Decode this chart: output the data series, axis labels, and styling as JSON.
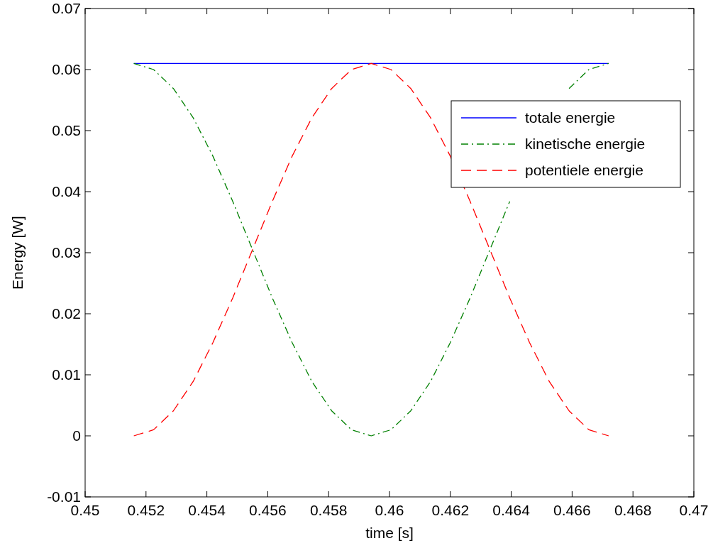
{
  "chart_data": {
    "type": "line",
    "xlabel": "time [s]",
    "ylabel": "Energy [W]",
    "xlim": [
      0.45,
      0.47
    ],
    "xticks": [
      0.45,
      0.452,
      0.454,
      0.456,
      0.458,
      0.46,
      0.462,
      0.464,
      0.466,
      0.468,
      0.47
    ],
    "ylim": [
      -0.01,
      0.07
    ],
    "yticks": [
      -0.01,
      0,
      0.01,
      0.02,
      0.03,
      0.04,
      0.05,
      0.06,
      0.07
    ],
    "x": [
      0.4516,
      0.45225,
      0.4529,
      0.45355,
      0.4542,
      0.45485,
      0.4555,
      0.45615,
      0.4568,
      0.45745,
      0.4581,
      0.45875,
      0.4594,
      0.46005,
      0.4607,
      0.46135,
      0.462,
      0.46265,
      0.4633,
      0.46395,
      0.4646,
      0.46525,
      0.4659,
      0.46655,
      0.4672
    ],
    "legend": "top right",
    "grid": false,
    "marker": "none",
    "series": [
      {
        "name": "totale energie",
        "color": "#0000ff",
        "line_style": "solid",
        "values": [
          0.061,
          0.061,
          0.061,
          0.061,
          0.061,
          0.061,
          0.061,
          0.061,
          0.061,
          0.061,
          0.061,
          0.061,
          0.061,
          0.061,
          0.061,
          0.061,
          0.061,
          0.061,
          0.061,
          0.061,
          0.061,
          0.061,
          0.061,
          0.061,
          0.061
        ]
      },
      {
        "name": "kinetische energie",
        "color": "#008000",
        "line_style": "dashdot",
        "values": [
          0.061,
          0.06,
          0.0569,
          0.0521,
          0.0458,
          0.0384,
          0.0305,
          0.0226,
          0.0153,
          0.0089,
          0.0041,
          0.001,
          0,
          0.001,
          0.0041,
          0.0089,
          0.0153,
          0.0226,
          0.0305,
          0.0384,
          null,
          null,
          0.0569,
          0.06,
          0.061
        ]
      },
      {
        "name": "potentiele energie",
        "color": "#ff0000",
        "line_style": "dashed",
        "values": [
          0,
          0.001,
          0.0041,
          0.0089,
          0.0153,
          0.0226,
          0.0305,
          0.0384,
          0.0458,
          0.0521,
          0.0569,
          0.06,
          0.061,
          0.06,
          0.0569,
          0.0521,
          0.0458,
          0.0384,
          0.0305,
          0.0226,
          0.0153,
          0.0089,
          0.0041,
          0.001,
          0
        ]
      }
    ]
  }
}
